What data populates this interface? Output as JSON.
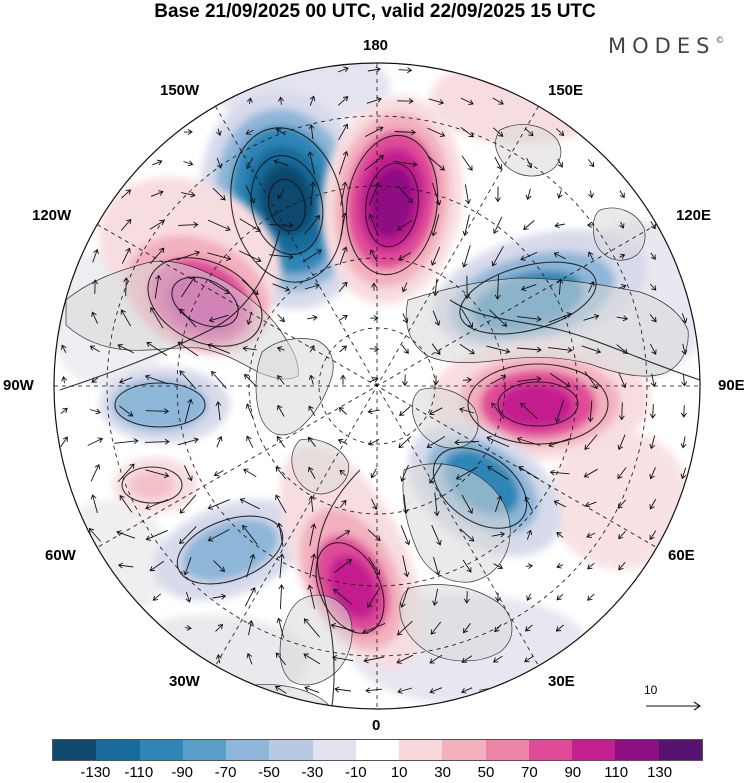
{
  "title": "Base 21/09/2025 00 UTC, valid 22/09/2025 15 UTC",
  "brand": {
    "name": "MODES",
    "mark": "©"
  },
  "longitude_labels": {
    "deg180": "180",
    "deg150w": "150W",
    "deg150e": "150E",
    "deg120w": "120W",
    "deg120e": "120E",
    "deg90w": "90W",
    "deg90e": "90E",
    "deg60w": "60W",
    "deg60e": "60E",
    "deg30w": "30W",
    "deg30e": "30E",
    "deg0": "0"
  },
  "reference_vector": {
    "label": "10"
  },
  "legend": {
    "colors": [
      "#0f4a6e",
      "#186a9a",
      "#2f86b6",
      "#5a9fca",
      "#8db6d8",
      "#b8c9e2",
      "#e3e2f0",
      "#ffffff",
      "#f8d8da",
      "#f3b0bd",
      "#ee84a6",
      "#df4b98",
      "#c31f8f",
      "#8e0f82",
      "#56136f"
    ],
    "ticks": [
      "-130",
      "-110",
      "-90",
      "-70",
      "-50",
      "-30",
      "-10",
      "10",
      "30",
      "50",
      "70",
      "90",
      "110",
      "130"
    ]
  },
  "map_colors": {
    "neg_strong": "#0f4a6e",
    "neg_mid": "#2f86b6",
    "neg_light": "#8db6d8",
    "neg_faint": "#d7daeb",
    "pos_strong": "#8e0f82",
    "pos_mid": "#df4b98",
    "pos_light": "#f3b0bd",
    "pos_faint": "#f8dde0"
  }
}
